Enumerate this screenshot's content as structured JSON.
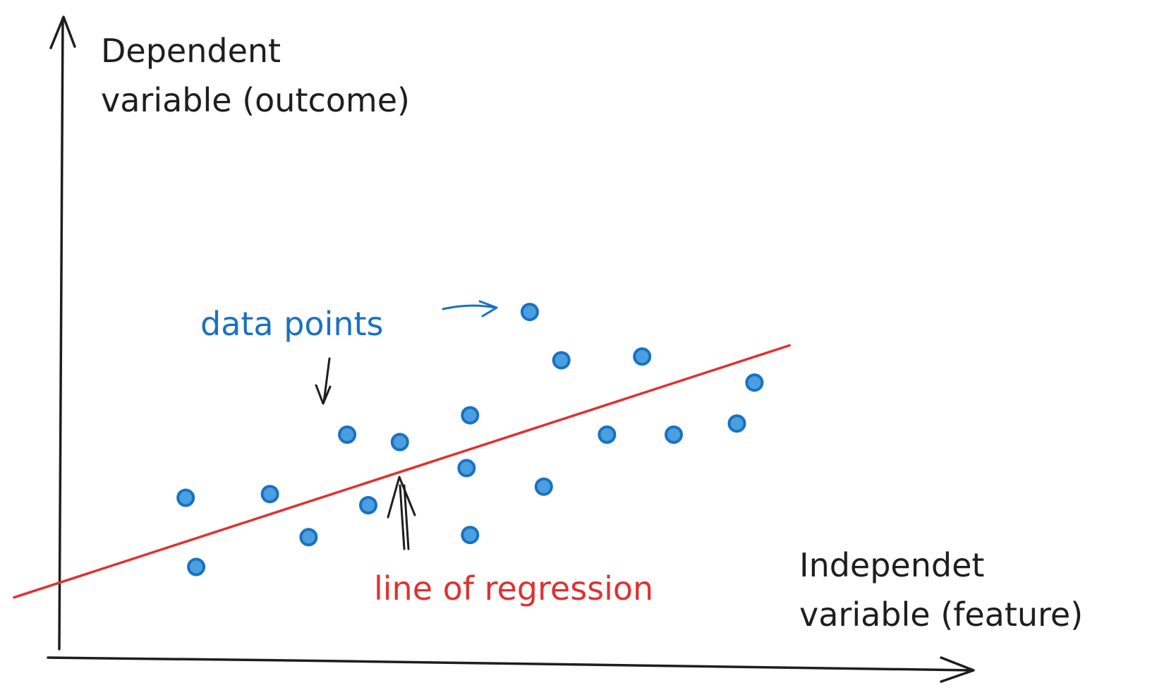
{
  "labels": {
    "y_axis_line1": "Dependent",
    "y_axis_line2": "variable (outcome)",
    "x_axis_line1": "Independet",
    "x_axis_line2": "variable (feature)",
    "data_points": "data points",
    "regression": "line of regression"
  },
  "colors": {
    "ink": "#1e1e1e",
    "points": "#1971c2",
    "regression": "#e03131"
  },
  "chart_data": {
    "type": "scatter",
    "points": [
      [
        180,
        315
      ],
      [
        195,
        222
      ],
      [
        300,
        320
      ],
      [
        355,
        262
      ],
      [
        410,
        400
      ],
      [
        440,
        305
      ],
      [
        485,
        390
      ],
      [
        580,
        355
      ],
      [
        585,
        426
      ],
      [
        585,
        265
      ],
      [
        670,
        565
      ],
      [
        690,
        330
      ],
      [
        715,
        500
      ],
      [
        780,
        400
      ],
      [
        830,
        505
      ],
      [
        875,
        400
      ],
      [
        965,
        415
      ],
      [
        990,
        470
      ]
    ],
    "regression_line": {
      "x": [
        0,
        1040
      ],
      "y": [
        200,
        520
      ]
    },
    "xlim": [
      0,
      1300
    ],
    "ylim": [
      100,
      960
    ]
  }
}
